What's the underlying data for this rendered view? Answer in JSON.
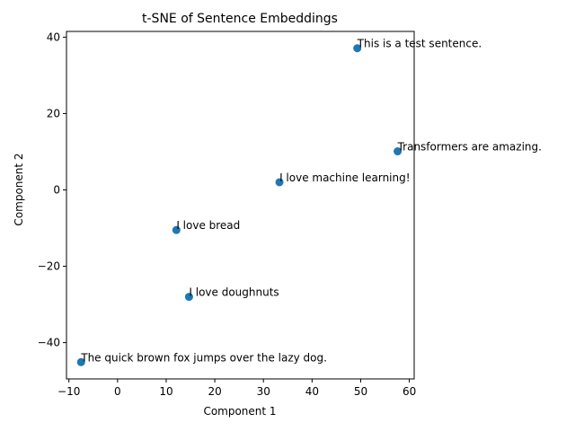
{
  "chart_data": {
    "type": "scatter",
    "title": "t-SNE of Sentence Embeddings",
    "xlabel": "Component 1",
    "ylabel": "Component 2",
    "xlim": [
      -10.5,
      61
    ],
    "ylim": [
      -49.5,
      41.5
    ],
    "xticks": [
      -10,
      0,
      10,
      20,
      30,
      40,
      50,
      60
    ],
    "yticks": [
      -40,
      -20,
      0,
      20,
      40
    ],
    "grid": false,
    "legend": "none",
    "marker_color": "#1f77b4",
    "points": [
      {
        "x": 49.3,
        "y": 37.1,
        "label": "This is a test sentence."
      },
      {
        "x": 57.6,
        "y": 10.1,
        "label": "Transformers are amazing."
      },
      {
        "x": 33.3,
        "y": 2.0,
        "label": "I love machine learning!"
      },
      {
        "x": 12.1,
        "y": -10.5,
        "label": "I love bread"
      },
      {
        "x": 14.7,
        "y": -28.0,
        "label": "I love doughnuts"
      },
      {
        "x": -7.5,
        "y": -45.1,
        "label": "The quick brown fox jumps over the lazy dog."
      }
    ]
  }
}
